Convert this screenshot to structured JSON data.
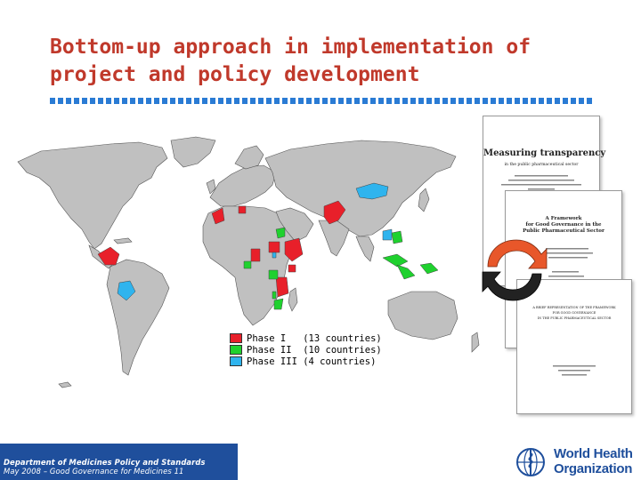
{
  "slide": {
    "title_line1": "Bottom-up approach in implementation of",
    "title_line2": "project and policy development"
  },
  "colors": {
    "title": "#c0392b",
    "phase_1": "#e8202a",
    "phase_2": "#1fd12e",
    "phase_3": "#2fb4ee",
    "land": "#c0c0c0",
    "footer_blue": "#1f4f9c"
  },
  "legend": {
    "items": [
      {
        "label": "Phase I   (13 countries)",
        "color": "#e8202a"
      },
      {
        "label": "Phase II  (10 countries)",
        "color": "#1fd12e"
      },
      {
        "label": "Phase III (4 countries)",
        "color": "#2fb4ee"
      }
    ]
  },
  "documents": {
    "doc1": {
      "title": "Measuring transparency",
      "subtitle": "in the public pharmaceutical sector"
    },
    "doc2": {
      "title_line1": "A Framework",
      "title_line2": "for Good Governance in the",
      "title_line3": "Public Pharmaceutical Sector"
    },
    "doc3": {
      "title_line1": "A BRIEF REPRESENTATION OF THE FRAMEWORK",
      "title_line2": "FOR GOOD GOVERNANCE",
      "title_line3": "IN THE PUBLIC PHARMACEUTICAL SECTOR"
    }
  },
  "footer": {
    "department": "Department of Medicines Policy and Standards",
    "date_line": "May 2008 – Good Governance for Medicines 11",
    "org_line1": "World Health",
    "org_line2": "Organization"
  }
}
